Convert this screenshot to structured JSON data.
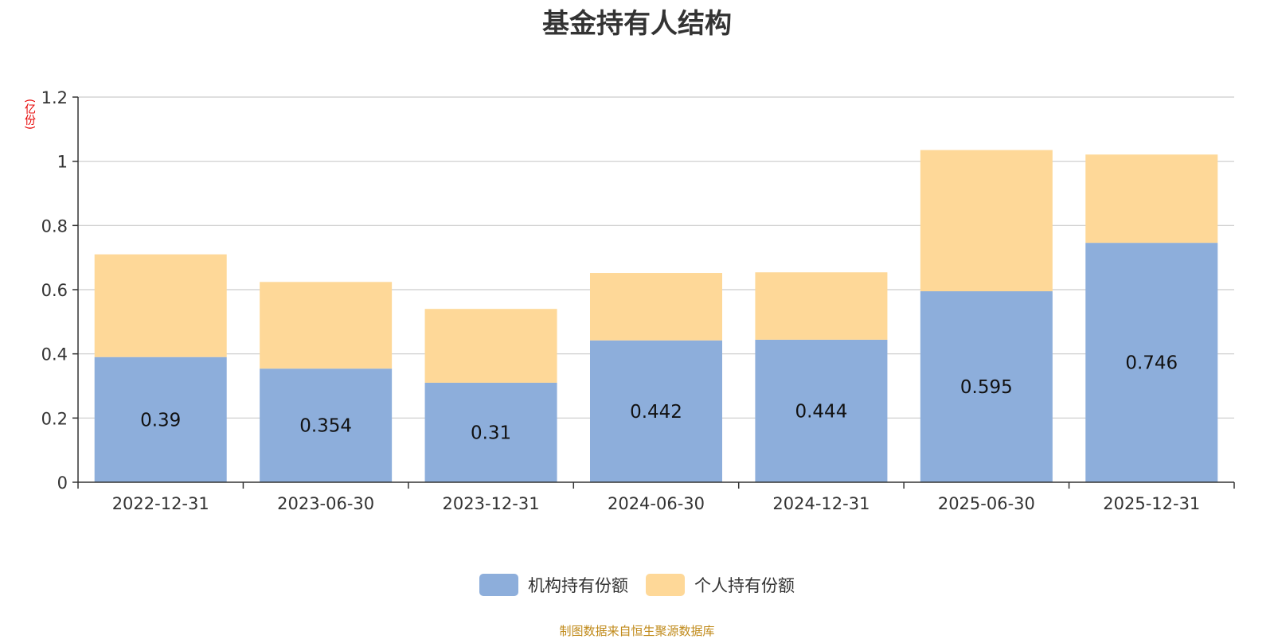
{
  "chart_data": {
    "type": "bar",
    "stacked": true,
    "title": "基金持有人结构",
    "ylabel": "(亿份)",
    "categories": [
      "2022-12-31",
      "2023-06-30",
      "2023-12-31",
      "2024-06-30",
      "2024-12-31",
      "2025-06-30",
      "2025-12-31"
    ],
    "series": [
      {
        "name": "机构持有份额",
        "color": "#8daedb",
        "values": [
          0.39,
          0.354,
          0.31,
          0.442,
          0.444,
          0.595,
          0.746
        ],
        "value_labels": [
          "0.39",
          "0.354",
          "0.31",
          "0.442",
          "0.444",
          "0.595",
          "0.746"
        ]
      },
      {
        "name": "个人持有份额",
        "color": "#fed898",
        "values": [
          0.32,
          0.27,
          0.23,
          0.21,
          0.21,
          0.44,
          0.275
        ]
      }
    ],
    "ylim": [
      0,
      1.2
    ],
    "yticks": [
      "0",
      "0.2",
      "0.4",
      "0.6",
      "0.8",
      "1",
      "1.2"
    ],
    "grid": true,
    "legend": "bottom-center"
  },
  "source": "制图数据来自恒生聚源数据库"
}
